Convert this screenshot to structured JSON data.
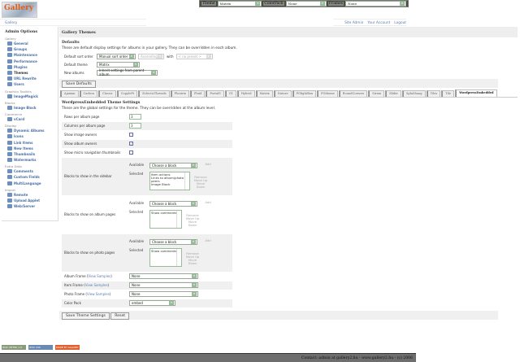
{
  "topbar": {
    "theme_label": "Theme",
    "theme_value": "Matrix",
    "colorpack_label": "ColorPack",
    "colorpack_value": "None",
    "frames_label": "Frames",
    "frames_value": "None"
  },
  "logo_text": "Gallery",
  "breadcrumb": "Gallery",
  "toplinks": [
    "Site Admin",
    "Your Account",
    "Logout"
  ],
  "sidebar": {
    "title": "Admin Options",
    "groups": [
      {
        "name": "Gallery",
        "items": [
          "General",
          "Groups",
          "Maintenance",
          "Performance",
          "Plugins",
          "Themes",
          "URL Rewrite",
          "Users"
        ]
      },
      {
        "name": "Graphics Toolkits",
        "items": [
          "ImageMagick"
        ]
      },
      {
        "name": "Blocks",
        "items": [
          "Image Block"
        ]
      },
      {
        "name": "Commerce",
        "items": [
          "vCard"
        ]
      },
      {
        "name": "Display",
        "items": [
          "Dynamic Albums",
          "Icons",
          "Link Items",
          "New Items",
          "Thumbnails",
          "Watermarks"
        ]
      },
      {
        "name": "Extra Data",
        "items": [
          "Comments",
          "Custom Fields",
          "MultiLanguage"
        ]
      },
      {
        "name": "Import",
        "items": [
          "Remote",
          "Upload Applet",
          "Web/Server"
        ]
      }
    ],
    "current": "Themes"
  },
  "main": {
    "header": "Gallery Themes",
    "defaults_title": "Defaults",
    "defaults_desc": "These are default display settings for albums in your gallery. They can be overridden in each album.",
    "sort_label": "Default sort order",
    "sort_value": "Manual sort order",
    "sort_dir": "Ascending",
    "with_label": "with",
    "with_value": "< no preset >",
    "theme_label": "Default theme",
    "theme_value": "Matrix",
    "new_label": "New albums",
    "new_value": "Inherit settings from parent album",
    "save_defaults": "Save Defaults",
    "tabs": [
      "Ajaxian",
      "Carbon",
      "Classic",
      "CopyleFt",
      "EclecticThreads",
      "Floatrix",
      "Fluid",
      "PortalS",
      "G1",
      "Hybrid",
      "Matrix",
      "Nature",
      "PGlightBox",
      "PGtheme",
      "RoundCorners",
      "Siriux",
      "Slider",
      "SplaShang",
      "Tiles",
      "Tile",
      "WordpressEmbedded"
    ],
    "active_tab": "WordpressEmbedded",
    "settings_title": "WordpressEmbedded Theme Settings",
    "settings_desc": "These are the global settings for the theme. They can be overridden at the album level.",
    "rows_label": "Rows per album page",
    "rows_value": "3",
    "cols_label": "Columns per album page",
    "cols_value": "3",
    "show_image_owners": {
      "label": "Show image owners",
      "checked": false
    },
    "show_album_owners": {
      "label": "Show album owners",
      "checked": true
    },
    "show_micro": {
      "label": "Show micro navigation thumbnails",
      "checked": false
    },
    "block_sections": [
      {
        "label": "Blocks to show in the sidebar",
        "selected": [
          "Item actions",
          "Links to album/photo peers",
          "Image Block"
        ]
      },
      {
        "label": "Blocks to show on album pages",
        "selected": [
          "Show comments"
        ]
      },
      {
        "label": "Blocks to show on photo pages",
        "selected": [
          "Show comments"
        ]
      }
    ],
    "available_label": "Available",
    "selected_label": "Selected",
    "choose_block": "Choose a block",
    "add": "Add",
    "remove": "Remove",
    "move_up": "Move Up",
    "move_down": "Move Down",
    "album_frame": "Album Frame",
    "item_frame": "Item Frame",
    "photo_frame": "Photo Frame",
    "view_samples": "View Samples",
    "frame_value": "None",
    "colorpack_label": "Color Pack",
    "colorpack_value": "embed",
    "save_theme": "Save Theme Settings",
    "reset": "Reset"
  },
  "badges": [
    "W3C XHTML 1.0",
    "W3C CSS",
    "MADE BY GALLERY"
  ],
  "footer": "Contact: admin at gallery2.hu - www.gallery2.hu - (c) 2006"
}
